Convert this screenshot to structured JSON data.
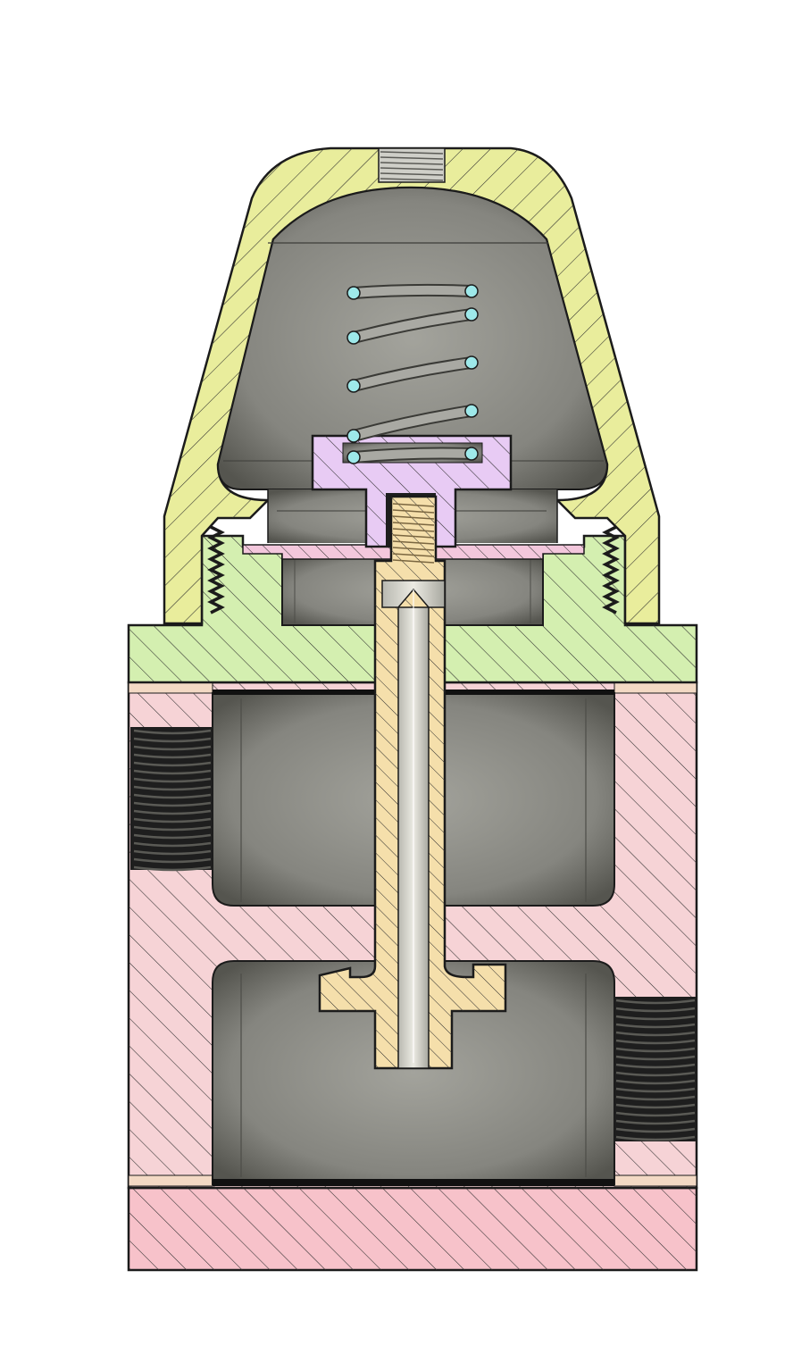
{
  "drawing": {
    "kind": "section view",
    "parts": [
      {
        "id": "cap",
        "label": "",
        "color": "#e9ed9c"
      },
      {
        "id": "bonnet",
        "label": "",
        "color": "#d4efb0"
      },
      {
        "id": "body",
        "label": "",
        "color": "#f6d3d6"
      },
      {
        "id": "base",
        "label": "",
        "color": "#f7c2ca"
      },
      {
        "id": "spring-plate",
        "label": "",
        "color": "#e8cbf4"
      },
      {
        "id": "gasket",
        "label": "",
        "color": "#f3c7dc"
      },
      {
        "id": "stem",
        "label": "",
        "color": "#f5dfab"
      },
      {
        "id": "spring",
        "label": "",
        "color": "#a9a9a3"
      },
      {
        "id": "wire-ends",
        "label": "",
        "color": "#9ee9ea"
      }
    ],
    "colors": {
      "cavity": "#8f8f89",
      "cavity_dark": "#5d5d59",
      "hatch": "#2c2c2c",
      "outline": "#1b1b1b",
      "thread": "#2a2a2a"
    }
  }
}
